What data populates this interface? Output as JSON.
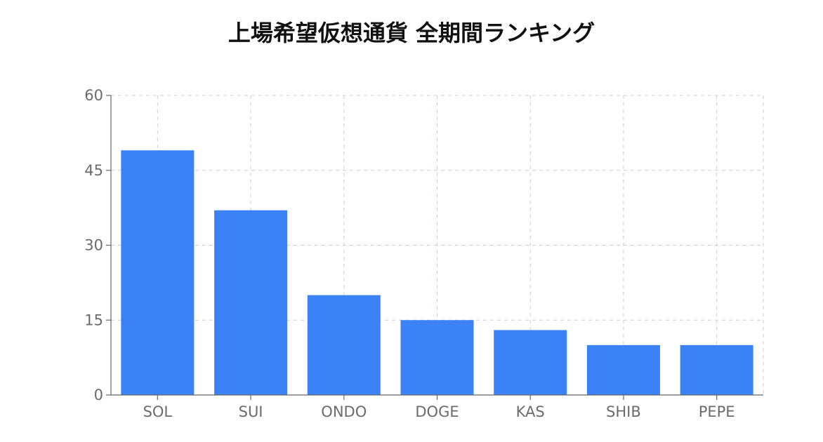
{
  "chart_data": {
    "type": "bar",
    "title": "上場希望仮想通貨 全期間ランキング",
    "categories": [
      "SOL",
      "SUI",
      "ONDO",
      "DOGE",
      "KAS",
      "SHIB",
      "PEPE"
    ],
    "values": [
      49,
      37,
      20,
      15,
      13,
      10,
      10
    ],
    "ylim": [
      0,
      60
    ],
    "yticks": [
      0,
      15,
      30,
      45,
      60
    ],
    "xlabel": "",
    "ylabel": "",
    "grid": true,
    "legend": "none",
    "colors": {
      "bar": "#3b82f6",
      "grid": "#d9c6d9",
      "axis": "#666666",
      "text": "#6b6b6b"
    }
  }
}
